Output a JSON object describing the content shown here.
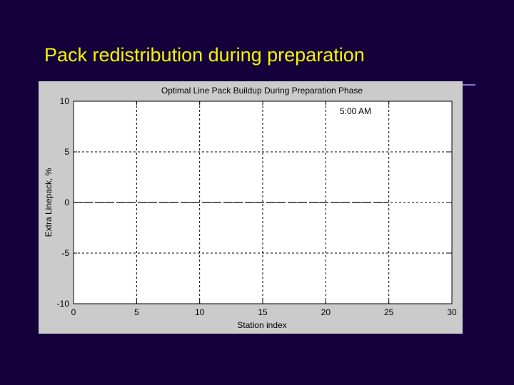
{
  "slide": {
    "title": "Pack redistribution during preparation"
  },
  "colors": {
    "background": "#14003a",
    "title": "#f4f400",
    "rule": "#8a6fd6",
    "figure_bg": "#cbcbcb",
    "axes_bg": "#ffffff",
    "line": "#000000"
  },
  "chart_data": {
    "type": "line",
    "title": "Optimal Line Pack Buildup During Preparation Phase",
    "xlabel": "Station index",
    "ylabel": "Extra Linepack, %",
    "xlim": [
      0,
      30
    ],
    "ylim": [
      -10,
      10
    ],
    "xticks": [
      0,
      5,
      10,
      15,
      20,
      25,
      30
    ],
    "xtick_labels": [
      "0",
      "5",
      "10",
      "15",
      "20",
      "25",
      "30"
    ],
    "yticks": [
      10,
      5,
      0,
      -5,
      -10
    ],
    "ytick_labels": [
      "10",
      "5",
      "0",
      "-5",
      "-10"
    ],
    "grid": true,
    "annotation": "5:00 AM",
    "series": [
      {
        "line_style": "dashed",
        "x": [
          0,
          1,
          2,
          3,
          4,
          5,
          6,
          7,
          8,
          9,
          10,
          11,
          12,
          13,
          14,
          15,
          16,
          17,
          18,
          19,
          20,
          21,
          22,
          23,
          24,
          25
        ],
        "y": [
          0,
          0,
          0,
          0,
          0,
          0,
          0,
          0,
          0,
          0,
          0,
          0,
          0,
          0,
          0,
          0,
          0,
          0,
          0,
          0,
          0,
          0,
          0,
          0,
          0,
          0
        ]
      }
    ]
  }
}
